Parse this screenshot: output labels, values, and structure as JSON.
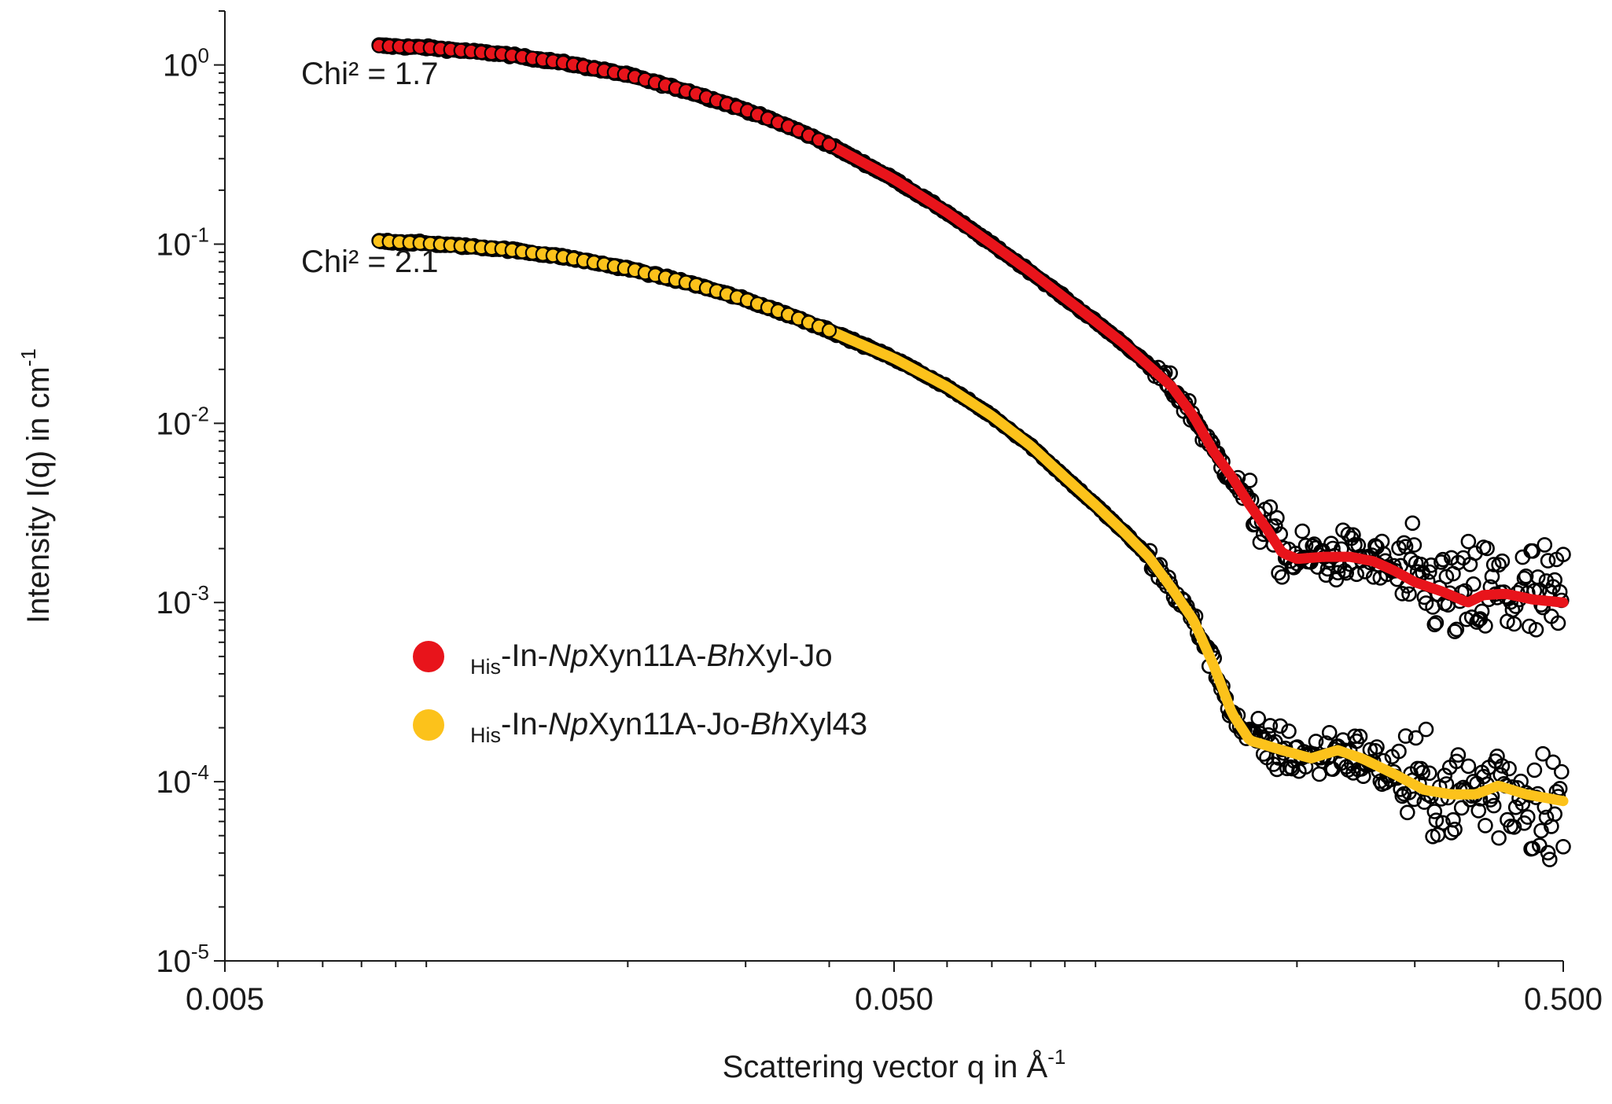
{
  "chart_data": {
    "type": "scatter",
    "x_scale": "log",
    "y_scale": "log",
    "xlim": [
      0.005,
      0.5
    ],
    "ylim": [
      1e-05,
      2
    ],
    "xlabel": "Scattering vector q in Å",
    "xlabel_exp": "-1",
    "ylabel": "Intensity I(q) in cm",
    "ylabel_exp": "-1",
    "x_ticks": [
      {
        "value": 0.005,
        "label": "0.005"
      },
      {
        "value": 0.05,
        "label": "0.050"
      },
      {
        "value": 0.5,
        "label": "0.500"
      }
    ],
    "y_ticks": [
      {
        "value": 1,
        "base": "10",
        "exp": "0"
      },
      {
        "value": 0.1,
        "base": "10",
        "exp": "-1"
      },
      {
        "value": 0.01,
        "base": "10",
        "exp": "-2"
      },
      {
        "value": 0.001,
        "base": "10",
        "exp": "-3"
      },
      {
        "value": 0.0001,
        "base": "10",
        "exp": "-4"
      },
      {
        "value": 1e-05,
        "base": "10",
        "exp": "-5"
      }
    ],
    "annotations": [
      {
        "text": "Chi² = 1.7",
        "x": 0.0065,
        "y": 0.78
      },
      {
        "text": "Chi² = 2.1",
        "x": 0.0065,
        "y": 0.07
      }
    ],
    "legend": {
      "placement": "center-left",
      "items": [
        {
          "series_index": 0,
          "sub": "His",
          "parts": [
            {
              "t": "-In-",
              "i": false
            },
            {
              "t": "Np",
              "i": true
            },
            {
              "t": "Xyn11A-",
              "i": false
            },
            {
              "t": "Bh",
              "i": true
            },
            {
              "t": "Xyl-Jo",
              "i": false
            }
          ]
        },
        {
          "series_index": 1,
          "sub": "His",
          "parts": [
            {
              "t": "-In-",
              "i": false
            },
            {
              "t": "Np",
              "i": true
            },
            {
              "t": "Xyn11A-Jo-",
              "i": false
            },
            {
              "t": "Bh",
              "i": true
            },
            {
              "t": "Xyl43",
              "i": false
            }
          ]
        }
      ]
    },
    "series": [
      {
        "name": "His-In-NpXyn11A-BhXyl-Jo",
        "color": "#e8141b",
        "chi2": 1.7,
        "curve": [
          [
            0.0085,
            1.28
          ],
          [
            0.01,
            1.25
          ],
          [
            0.013,
            1.15
          ],
          [
            0.016,
            1.03
          ],
          [
            0.02,
            0.88
          ],
          [
            0.025,
            0.7
          ],
          [
            0.03,
            0.56
          ],
          [
            0.035,
            0.45
          ],
          [
            0.04,
            0.36
          ],
          [
            0.05,
            0.23
          ],
          [
            0.06,
            0.15
          ],
          [
            0.07,
            0.1
          ],
          [
            0.08,
            0.07
          ],
          [
            0.09,
            0.05
          ],
          [
            0.1,
            0.037
          ],
          [
            0.11,
            0.028
          ],
          [
            0.12,
            0.021
          ],
          [
            0.13,
            0.016
          ],
          [
            0.14,
            0.011
          ],
          [
            0.15,
            0.007
          ],
          [
            0.16,
            0.005
          ],
          [
            0.17,
            0.0035
          ],
          [
            0.18,
            0.0026
          ],
          [
            0.19,
            0.0019
          ],
          [
            0.2,
            0.00175
          ],
          [
            0.22,
            0.0018
          ],
          [
            0.24,
            0.0018
          ],
          [
            0.26,
            0.0017
          ],
          [
            0.28,
            0.0015
          ],
          [
            0.3,
            0.0013
          ],
          [
            0.33,
            0.00115
          ],
          [
            0.36,
            0.001
          ],
          [
            0.38,
            0.0011
          ],
          [
            0.41,
            0.00112
          ],
          [
            0.45,
            0.00104
          ],
          [
            0.5,
            0.001
          ]
        ]
      },
      {
        "name": "His-In-NpXyn11A-Jo-BhXyl43",
        "color": "#fcc21b",
        "chi2": 2.1,
        "curve": [
          [
            0.0085,
            0.104
          ],
          [
            0.01,
            0.101
          ],
          [
            0.013,
            0.094
          ],
          [
            0.016,
            0.085
          ],
          [
            0.02,
            0.073
          ],
          [
            0.025,
            0.06
          ],
          [
            0.03,
            0.049
          ],
          [
            0.035,
            0.04
          ],
          [
            0.04,
            0.033
          ],
          [
            0.05,
            0.023
          ],
          [
            0.06,
            0.016
          ],
          [
            0.07,
            0.011
          ],
          [
            0.08,
            0.0075
          ],
          [
            0.09,
            0.005
          ],
          [
            0.1,
            0.0035
          ],
          [
            0.11,
            0.0025
          ],
          [
            0.12,
            0.0018
          ],
          [
            0.13,
            0.0012
          ],
          [
            0.14,
            0.0008
          ],
          [
            0.15,
            0.00045
          ],
          [
            0.16,
            0.00024
          ],
          [
            0.17,
            0.00017
          ],
          [
            0.19,
            0.00015
          ],
          [
            0.21,
            0.000135
          ],
          [
            0.23,
            0.00015
          ],
          [
            0.25,
            0.000135
          ],
          [
            0.28,
            0.00011
          ],
          [
            0.31,
            9e-05
          ],
          [
            0.34,
            8.5e-05
          ],
          [
            0.37,
            8.5e-05
          ],
          [
            0.4,
            9.5e-05
          ],
          [
            0.44,
            8.5e-05
          ],
          [
            0.5,
            7.8e-05
          ]
        ]
      }
    ]
  }
}
